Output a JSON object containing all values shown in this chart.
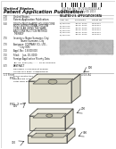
{
  "bg_color": "#ffffff",
  "barcode_color": "#111111",
  "text_dark": "#111111",
  "text_mid": "#333333",
  "text_light": "#555555",
  "diagram_stroke": "#444444",
  "diagram_fill_outer": "#f2f0ea",
  "diagram_fill_inner": "#e5e2d8",
  "diagram_fill_recess": "#ccc9b8",
  "diagram_fill_dark": "#b8b5a0",
  "gray_box_fill": "#bcbcbc",
  "header_title": "United States",
  "header_subtitle": "Patent Application Publication",
  "sep_line_color": "#aaaaaa",
  "left_meta": [
    [
      "(19)",
      "United States"
    ],
    [
      "(12)",
      "Patent Application Publication",
      "(10) Pub. No.: US 2013/0000000 A1"
    ],
    [
      "",
      "                                               (43) Pub. Date:     July 00, 2013"
    ],
    [
      "(54)",
      "DOUGHTNUT-SHAPED HOLLOW CORE"
    ],
    [
      "",
      "BODY, BIDIRECTIONAL HOLLOW CORE"
    ],
    [
      "",
      "SLAB USING THE SAME, AND"
    ],
    [
      "",
      "CONSTRUCTION METHOD THEREOF"
    ],
    [
      "(75)",
      "Inventors: Firstname Lastname,"
    ],
    [
      "",
      "           City (KR); Secondname"
    ],
    [
      "",
      "           Lastname, City (KR)"
    ],
    [
      "(73)",
      "Assignee: COMPANYNAME CO., LTD.,"
    ],
    [
      "",
      "          City (KR)"
    ],
    [
      "(21)",
      "Appl. No.: 13/000,000"
    ],
    [
      "(22)",
      "Filed:     Jan. 00, 0000"
    ],
    [
      "(30)",
      "Foreign Application Priority Data"
    ],
    [
      "",
      "Jan. 00, 0000 (KR) .......... 00-0000-0000000"
    ],
    [
      "(57)",
      "ABSTRACT"
    ],
    [
      "",
      "Abstract text line one goes here in small"
    ],
    [
      "",
      "font describing the patent invention."
    ],
    [
      "",
      "More description text follows below."
    ]
  ],
  "right_table_title": "RELATED U.S. APPLICATION DATA",
  "right_table_rows": [
    [
      "Appl. No.",
      "Filing Date",
      "Patent No."
    ],
    [
      "00/000,000",
      "Jan 00, 0000",
      "0,000,000"
    ],
    [
      "00/000,000",
      "Jan 00, 0000",
      "0,000,000"
    ],
    [
      "00/000,000",
      "Jan 00, 0000",
      "0,000,000"
    ],
    [
      "00/000,000",
      "Jan 00, 0000",
      "0,000,000"
    ],
    [
      "00/000,000",
      "Jan 00, 0000",
      "0,000,000"
    ],
    [
      "00/000,000",
      "Jan 00, 0000",
      "0,000,000"
    ]
  ],
  "sheet_line": "1/2 Sheet",
  "pub_num_line": "US 2013/0000000 A1",
  "fig1_label": "FIG. 1",
  "fig2_label": "FIG. 2"
}
